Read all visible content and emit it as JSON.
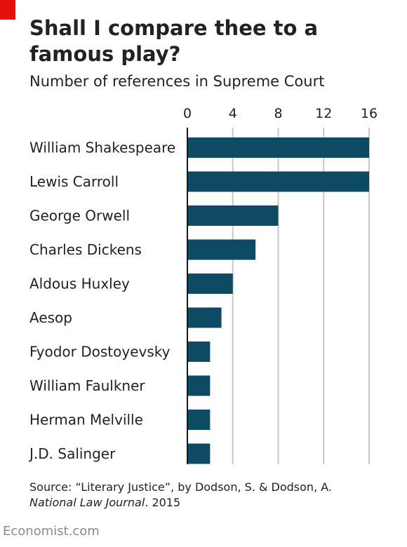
{
  "title": "Shall I compare thee to a famous play?",
  "subtitle": "Number of references in Supreme Court",
  "source": {
    "line1": "Source: “Literary Justice”, by Dodson, S. & Dodson, A.",
    "publication": "National Law Journal",
    "year_suffix": ". 2015"
  },
  "brand": "Economist.com",
  "colors": {
    "bar": "#0e4a64",
    "grid": "#c8c8c8",
    "accent": "#e3120b"
  },
  "chart_data": {
    "type": "bar",
    "orientation": "horizontal",
    "categories": [
      "William Shakespeare",
      "Lewis Carroll",
      "George Orwell",
      "Charles Dickens",
      "Aldous Huxley",
      "Aesop",
      "Fyodor Dostoyevsky",
      "William Faulkner",
      "Herman Melville",
      "J.D. Salinger"
    ],
    "values": [
      16,
      16,
      8,
      6,
      4,
      3,
      2,
      2,
      2,
      2
    ],
    "xlim": [
      0,
      16
    ],
    "xticks": [
      "0",
      "4",
      "8",
      "12",
      "16"
    ],
    "xtick_values": [
      0,
      4,
      8,
      12,
      16
    ],
    "axis_position": "top",
    "grid": true
  }
}
